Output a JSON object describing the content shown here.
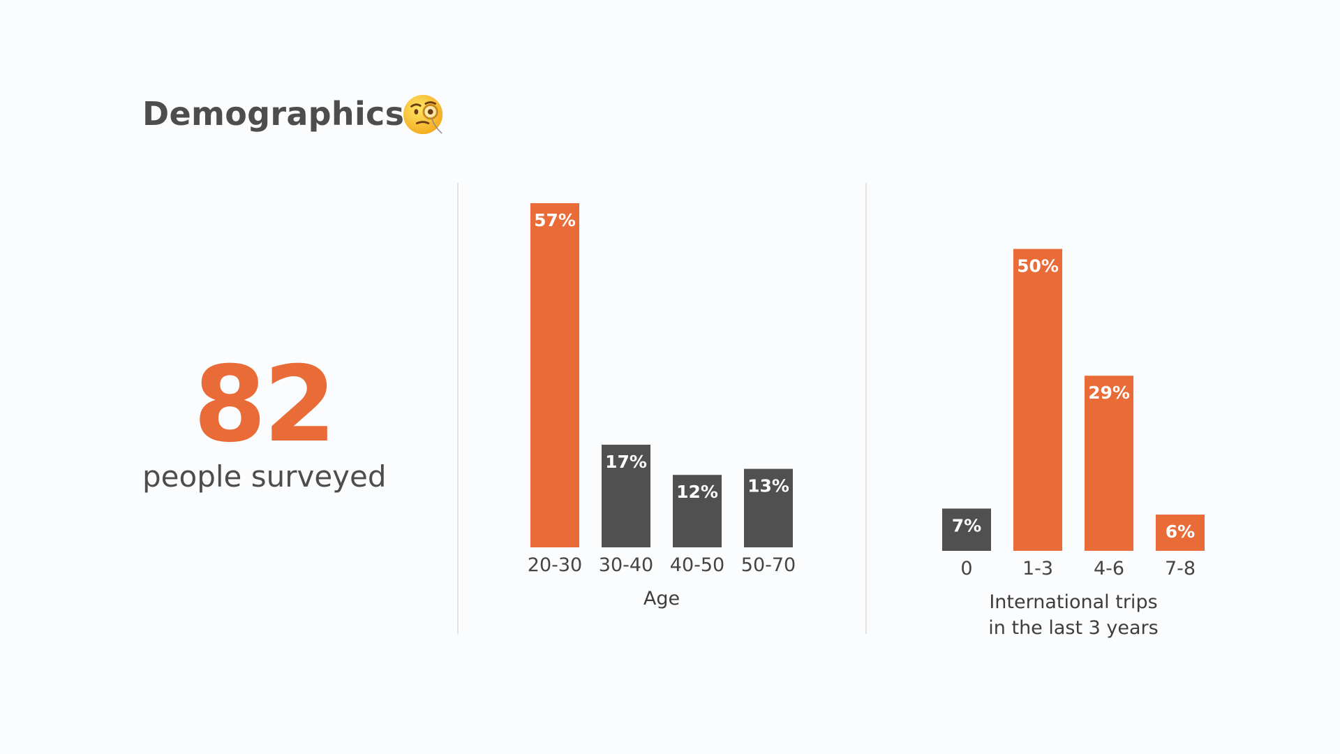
{
  "header": {
    "title": "Demographics",
    "icon": "monocle-face-icon"
  },
  "stat": {
    "value": "82",
    "label": "people surveyed"
  },
  "colors": {
    "accent": "#e96b37",
    "neutral": "#505050",
    "text": "#4d4d4d",
    "divider": "#e3e3e3"
  },
  "chart_data": [
    {
      "type": "bar",
      "title": "",
      "categories": [
        "20-30",
        "30-40",
        "40-50",
        "50-70"
      ],
      "values": [
        57,
        17,
        12,
        13
      ],
      "value_labels": [
        "57%",
        "17%",
        "12%",
        "13%"
      ],
      "highlight": [
        true,
        false,
        false,
        false
      ],
      "xlabel": [
        "Age"
      ],
      "ylabel": "",
      "ylim": [
        0,
        57
      ],
      "grid": false,
      "legend": "none"
    },
    {
      "type": "bar",
      "title": "",
      "categories": [
        "0",
        "1-3",
        "4-6",
        "7-8"
      ],
      "values": [
        7,
        50,
        29,
        6
      ],
      "value_labels": [
        "7%",
        "50%",
        "29%",
        "6%"
      ],
      "highlight": [
        false,
        true,
        true,
        true
      ],
      "xlabel": [
        "International trips",
        "in the last 3 years"
      ],
      "ylabel": "",
      "ylim": [
        0,
        57
      ],
      "grid": false,
      "legend": "none"
    }
  ]
}
